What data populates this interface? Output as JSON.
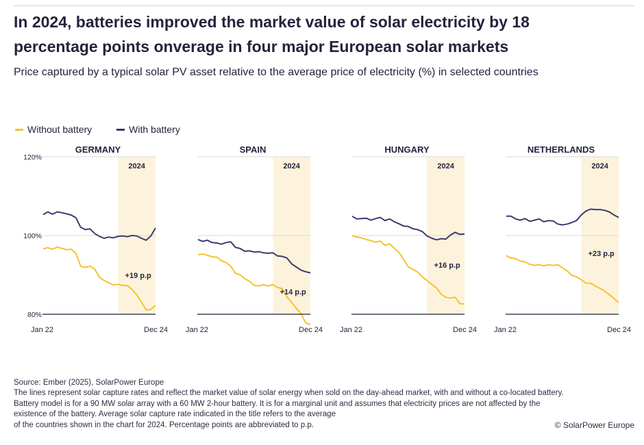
{
  "title_line1": "In 2024, batteries improved the market value of solar electricity by 18",
  "title_line2": "percentage points onverage in four major European solar markets",
  "subtitle": "Price captured by a typical solar PV asset relative to the average price of electricity (%) in selected countries",
  "highlight_label": "2024",
  "colors": {
    "without": "#f5c22f",
    "with": "#3d3a6e",
    "highlight": "#fdf3dc",
    "axis": "#1f1f3a",
    "grid": "#d9d9d9"
  },
  "chart_data": {
    "type": "line",
    "legend": [
      {
        "name": "Without battery",
        "color": "#f5c22f"
      },
      {
        "name": "With battery",
        "color": "#3d3a6e"
      }
    ],
    "legend_placement": "top-left",
    "y_ticks": [
      "120%",
      "100%",
      "80%"
    ],
    "ylim": [
      80,
      120
    ],
    "x_start_label": "Jan 22",
    "x_end_label": "Dec 24",
    "highlight_period": "2024",
    "panels": [
      {
        "title": "GERMANY",
        "annotation": "+19 p.p",
        "series": [
          {
            "name": "Without battery",
            "values": [
              96.6,
              96.9,
              96.5,
              97.1,
              96.7,
              96.4,
              96.5,
              95.5,
              92.2,
              91.9,
              92.2,
              91.5,
              89.4,
              88.6,
              88.0,
              87.4,
              87.6,
              87.3,
              87.3,
              86.3,
              84.9,
              83.1,
              81.1,
              81.2,
              82.3
            ]
          },
          {
            "name": "With battery",
            "values": [
              105.3,
              106.0,
              105.4,
              106.0,
              105.8,
              105.5,
              105.2,
              104.5,
              102.1,
              101.5,
              101.7,
              100.5,
              99.8,
              99.3,
              99.6,
              99.4,
              99.8,
              99.9,
              99.7,
              100.0,
              99.9,
              99.3,
              98.8,
              99.9,
              101.9
            ]
          }
        ]
      },
      {
        "title": "SPAIN",
        "annotation": "+14 p.p",
        "series": [
          {
            "name": "Without battery",
            "values": [
              95.1,
              95.3,
              95.0,
              94.6,
              94.5,
              93.6,
              93.1,
              92.2,
              90.4,
              90.0,
              89.0,
              88.4,
              87.3,
              87.2,
              87.5,
              87.2,
              87.5,
              86.8,
              86.5,
              84.4,
              83.0,
              81.5,
              80.2,
              77.8,
              77.4
            ]
          },
          {
            "name": "With battery",
            "values": [
              99.0,
              98.5,
              98.8,
              98.2,
              98.1,
              97.8,
              98.2,
              98.4,
              97.0,
              96.7,
              96.0,
              96.1,
              95.8,
              95.9,
              95.6,
              95.5,
              95.6,
              94.8,
              94.7,
              94.3,
              92.8,
              92.0,
              91.2,
              90.8,
              90.5
            ]
          }
        ]
      },
      {
        "title": "HUNGARY",
        "annotation": "+16 p.p",
        "series": [
          {
            "name": "Without battery",
            "values": [
              100.0,
              99.6,
              99.4,
              99.0,
              98.7,
              98.3,
              98.6,
              97.5,
              97.9,
              96.8,
              95.7,
              93.9,
              92.0,
              91.4,
              90.7,
              89.5,
              88.6,
              87.6,
              86.7,
              85.1,
              84.3,
              84.1,
              84.3,
              82.7,
              82.6
            ]
          },
          {
            "name": "With battery",
            "values": [
              104.9,
              104.2,
              104.3,
              104.4,
              103.9,
              104.3,
              104.6,
              103.8,
              104.2,
              103.5,
              103.0,
              102.4,
              102.3,
              101.7,
              101.5,
              101.0,
              99.9,
              99.3,
              98.9,
              99.2,
              99.1,
              100.1,
              100.8,
              100.3,
              100.4
            ]
          }
        ]
      },
      {
        "title": "NETHERLANDS",
        "annotation": "+23 p.p",
        "series": [
          {
            "name": "Without battery",
            "values": [
              94.9,
              94.3,
              94.1,
              93.5,
              93.3,
              92.7,
              92.4,
              92.6,
              92.3,
              92.6,
              92.4,
              92.6,
              91.8,
              91.0,
              89.9,
              89.5,
              88.8,
              87.9,
              87.9,
              87.2,
              86.6,
              85.9,
              85.0,
              84.0,
              83.0
            ]
          },
          {
            "name": "With battery",
            "values": [
              104.9,
              104.9,
              104.2,
              103.9,
              104.3,
              103.6,
              103.9,
              104.2,
              103.5,
              103.8,
              103.7,
              102.9,
              102.7,
              102.9,
              103.3,
              103.8,
              105.2,
              106.2,
              106.7,
              106.6,
              106.6,
              106.4,
              106.0,
              105.2,
              104.6
            ]
          }
        ]
      }
    ]
  },
  "footer": {
    "source": "Source: Ember (2025), SolarPower Europe",
    "line1": "The lines represent solar capture rates and reflect the market value of solar energy when sold on the day-ahead market, with and without a co-located battery.",
    "line2": "Battery model is for a 90 MW solar array with a 60 MW 2-hour battery. It is for a marginal unit and assumes that electricity prices are not affected by the",
    "line3": "existence of the battery. Average solar capture rate indicated in the title refers to the average",
    "line4": "of the countries shown in the chart for 2024. Percentage points are abbreviated to p.p."
  },
  "copyright": "© SolarPower Europe"
}
